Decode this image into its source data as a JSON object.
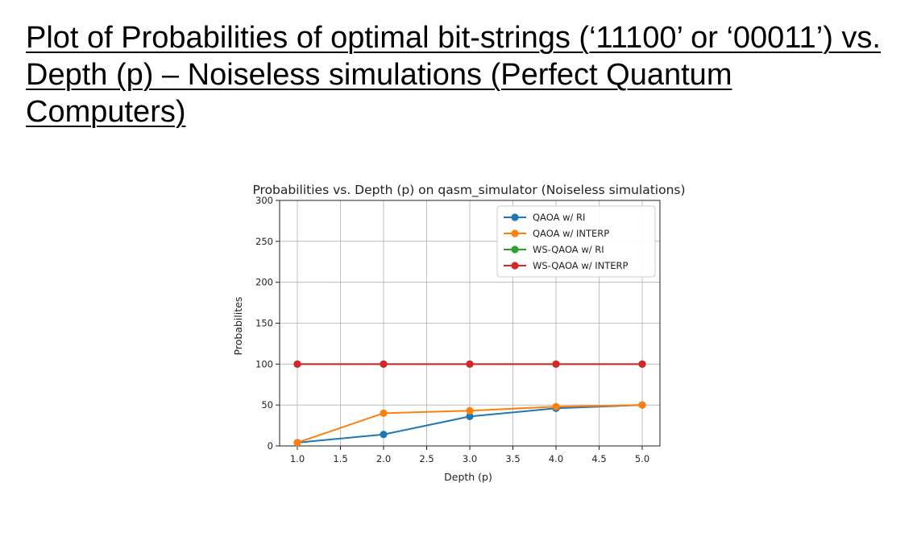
{
  "slide": {
    "title": "Plot of Probabilities of optimal bit-strings (‘11100’ or ‘00011’) vs. Depth (p) – Noiseless simulations (Perfect Quantum Computers)"
  },
  "chart_data": {
    "type": "line",
    "title": "Probabilities vs. Depth (p) on qasm_simulator (Noiseless simulations)",
    "xlabel": "Depth (p)",
    "ylabel": "Probabilites",
    "xlim": [
      1.0,
      5.0
    ],
    "ylim": [
      0,
      300
    ],
    "xticks": [
      1.0,
      1.5,
      2.0,
      2.5,
      3.0,
      3.5,
      4.0,
      4.5,
      5.0
    ],
    "xtick_labels": [
      "1.0",
      "1.5",
      "2.0",
      "2.5",
      "3.0",
      "3.5",
      "4.0",
      "4.5",
      "5.0"
    ],
    "yticks": [
      0,
      50,
      100,
      150,
      200,
      250,
      300
    ],
    "ytick_labels": [
      "0",
      "50",
      "100",
      "150",
      "200",
      "250",
      "300"
    ],
    "grid": true,
    "legend_position": "top-right",
    "x": [
      1,
      2,
      3,
      4,
      5
    ],
    "series": [
      {
        "name": "QAOA w/ RI",
        "color": "#1f77b4",
        "values": [
          4,
          14,
          36,
          46,
          50
        ]
      },
      {
        "name": "QAOA w/ INTERP",
        "color": "#ff7f0e",
        "values": [
          4,
          40,
          43,
          48,
          50
        ]
      },
      {
        "name": "WS-QAOA w/ RI",
        "color": "#2ca02c",
        "values": [
          100,
          100,
          100,
          100,
          100
        ]
      },
      {
        "name": "WS-QAOA w/ INTERP",
        "color": "#d62728",
        "values": [
          100,
          100,
          100,
          100,
          100
        ]
      }
    ]
  }
}
